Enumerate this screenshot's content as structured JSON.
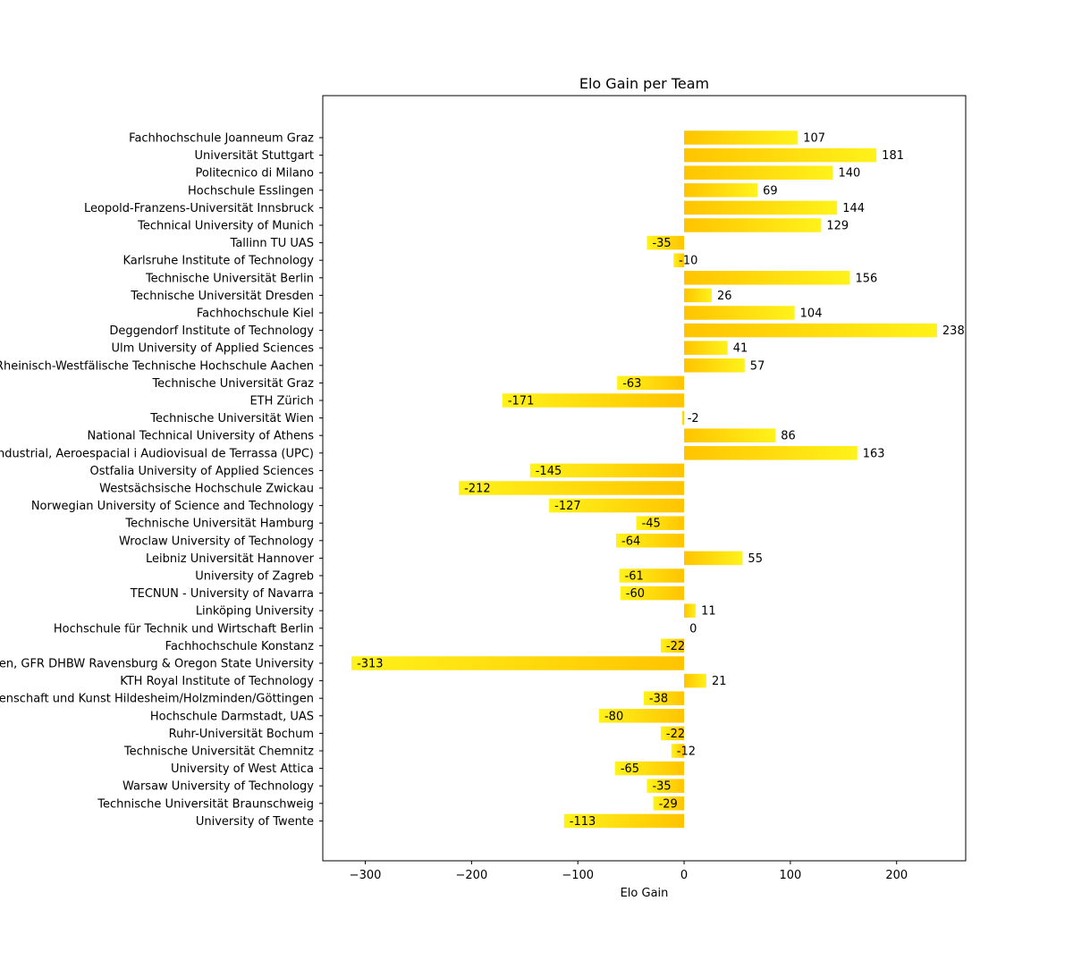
{
  "chart_data": {
    "type": "bar",
    "orientation": "horizontal",
    "title": "Elo Gain per Team",
    "xlabel": "Elo Gain",
    "ylabel": "",
    "xlim": [
      -340,
      265
    ],
    "xticks": [
      -300,
      -200,
      -100,
      0,
      100,
      200
    ],
    "xtick_labels": [
      "−300",
      "−200",
      "−100",
      "0",
      "100",
      "200"
    ],
    "grid": false,
    "bar_gradient": [
      "#FFC400",
      "#FFF21A"
    ],
    "categories": [
      "Fachhochschule Joanneum Graz",
      "Universität Stuttgart",
      "Politecnico di Milano",
      "Hochschule Esslingen",
      "Leopold-Franzens-Universität Innsbruck",
      "Technical University of Munich",
      "Tallinn TU UAS",
      "Karlsruhe Institute of Technology",
      "Technische Universität Berlin",
      "Technische Universität Dresden",
      "Fachhochschule Kiel",
      "Deggendorf Institute of Technology",
      "Ulm University of Applied Sciences",
      "Rheinisch-Westfälische Technische Hochschule Aachen",
      "Technische Universität Graz",
      "ETH Zürich",
      "Technische Universität Wien",
      "National Technical University of Athens",
      "Escola Superior d'Enginyeries Industrial, Aeroespacial i Audiovisual de Terrassa (UPC)",
      "Ostfalia University of Applied Sciences",
      "Westsächsische Hochschule Zwickau",
      "Norwegian University of Science and Technology",
      "Technische Universität Hamburg",
      "Wroclaw University of Technology",
      "Leibniz Universität Hannover",
      "University of Zagreb",
      "TECNUN - University of Navarra",
      "Linköping University",
      "Hochschule für Technik und Wirtschaft Berlin",
      "Fachhochschule Konstanz",
      "DHBW Stuttgart, DHBW Friedrichshafen, DHBW Mosbach, HS Esslingen, GFR DHBW Ravensburg & Oregon State University",
      "KTH Royal Institute of Technology",
      "Hochschule für angewandte Wissenschaft und Kunst Hildesheim/Holzminden/Göttingen",
      "Hochschule Darmstadt, UAS",
      "Ruhr-Universität Bochum",
      "Technische Universität Chemnitz",
      "University of West Attica",
      "Warsaw University of Technology",
      "Technische Universität Braunschweig",
      "University of Twente"
    ],
    "values": [
      107,
      181,
      140,
      69,
      144,
      129,
      -35,
      -10,
      156,
      26,
      104,
      238,
      41,
      57,
      -63,
      -171,
      -2,
      86,
      163,
      -145,
      -212,
      -127,
      -45,
      -64,
      55,
      -61,
      -60,
      11,
      0,
      -22,
      -313,
      21,
      -38,
      -80,
      -22,
      -12,
      -65,
      -35,
      -29,
      -113
    ],
    "value_labels": [
      "107",
      "181",
      "140",
      "69",
      "144",
      "129",
      "-35",
      "-10",
      "156",
      "26",
      "104",
      "238",
      "41",
      "57",
      "-63",
      "-171",
      "-2",
      "86",
      "163",
      "-145",
      "-212",
      "-127",
      "-45",
      "-64",
      "55",
      "-61",
      "-60",
      "11",
      "0",
      "-22",
      "-313",
      "21",
      "-38",
      "-80",
      "-22",
      "-12",
      "-65",
      "-35",
      "-29",
      "-113"
    ]
  }
}
